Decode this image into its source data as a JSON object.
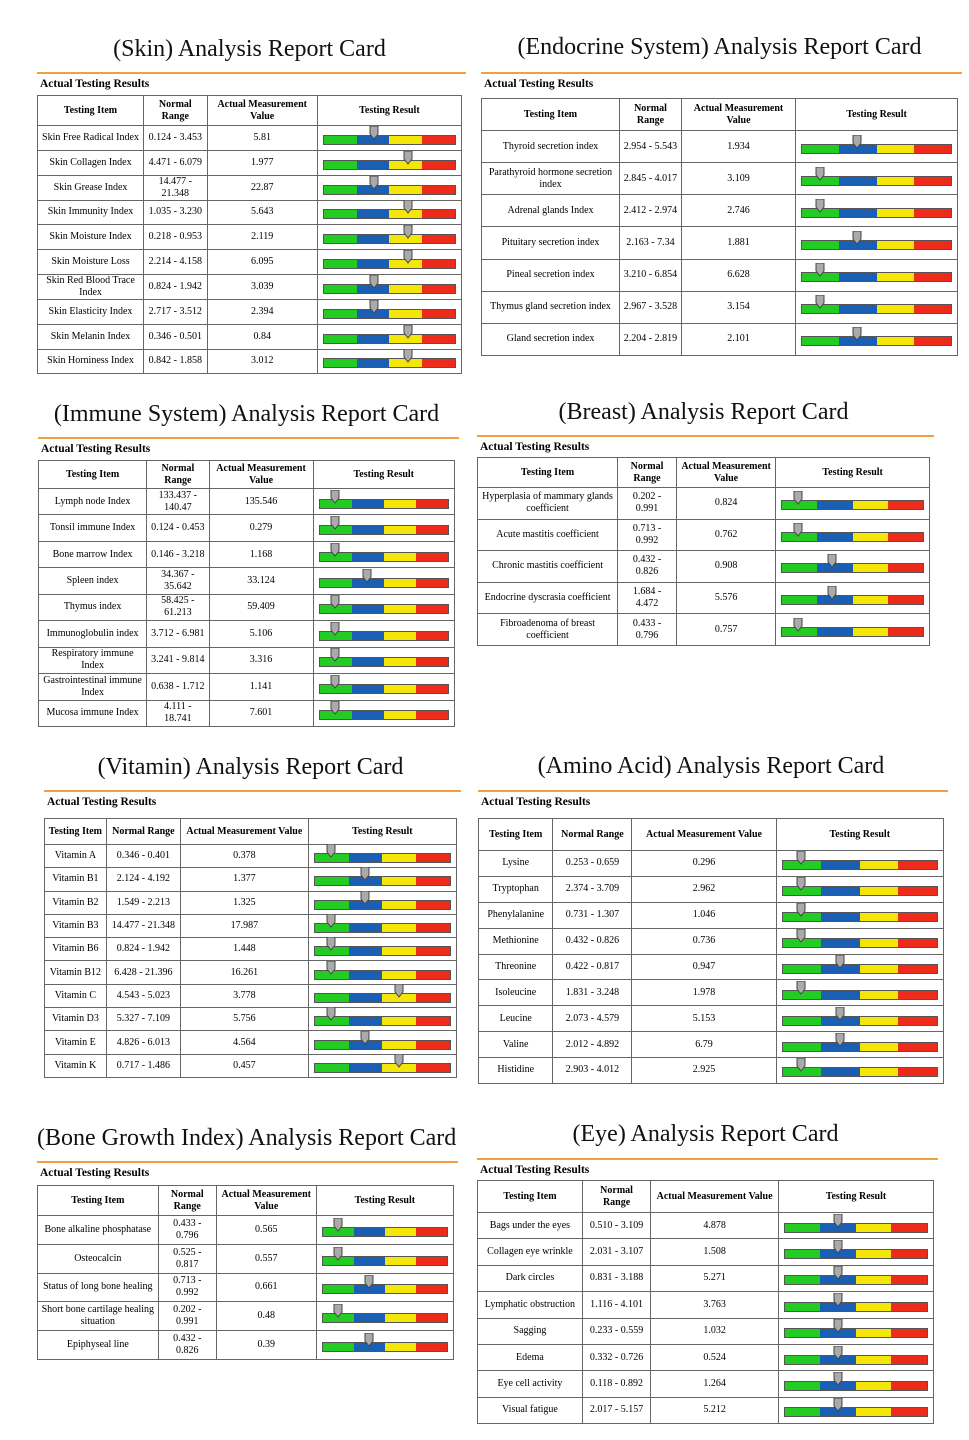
{
  "headers": [
    "Testing Item",
    "Normal Range",
    "Actual Measurement Value",
    "Testing Result"
  ],
  "cards": [
    {
      "title": "(Skin) Analysis Report Card",
      "subtitle": "Actual Testing Results",
      "rows": [
        {
          "item": "Skin Free Radical Index",
          "range": "0.124 - 3.453",
          "value": "5.81",
          "marker": 38
        },
        {
          "item": "Skin Collagen Index",
          "range": "4.471 - 6.079",
          "value": "1.977",
          "marker": 64
        },
        {
          "item": "Skin Grease Index",
          "range": "14.477 - 21.348",
          "value": "22.87",
          "marker": 38
        },
        {
          "item": "Skin Immunity Index",
          "range": "1.035 - 3.230",
          "value": "5.643",
          "marker": 64
        },
        {
          "item": "Skin Moisture Index",
          "range": "0.218 - 0.953",
          "value": "2.119",
          "marker": 64
        },
        {
          "item": "Skin Moisture Loss",
          "range": "2.214 - 4.158",
          "value": "6.095",
          "marker": 64
        },
        {
          "item": "Skin Red Blood Trace Index",
          "range": "0.824 - 1.942",
          "value": "3.039",
          "marker": 38
        },
        {
          "item": "Skin Elasticity Index",
          "range": "2.717 - 3.512",
          "value": "2.394",
          "marker": 38
        },
        {
          "item": "Skin Melanin Index",
          "range": "0.346 - 0.501",
          "value": "0.84",
          "marker": 64
        },
        {
          "item": "Skin Horniness Index",
          "range": "0.842 - 1.858",
          "value": "3.012",
          "marker": 64
        }
      ]
    },
    {
      "title": "(Endocrine System) Analysis Report Card",
      "subtitle": "Actual Testing Results",
      "rows": [
        {
          "item": "Thyroid secretion index",
          "range": "2.954 - 5.543",
          "value": "1.934",
          "marker": 37
        },
        {
          "item": "Parathyroid hormone secretion index",
          "range": "2.845 - 4.017",
          "value": "3.109",
          "marker": 12
        },
        {
          "item": "Adrenal glands Index",
          "range": "2.412 - 2.974",
          "value": "2.746",
          "marker": 12
        },
        {
          "item": "Pituitary secretion index",
          "range": "2.163 - 7.34",
          "value": "1.881",
          "marker": 37
        },
        {
          "item": "Pineal secretion index",
          "range": "3.210 - 6.854",
          "value": "6.628",
          "marker": 12
        },
        {
          "item": "Thymus gland secretion index",
          "range": "2.967 - 3.528",
          "value": "3.154",
          "marker": 12
        },
        {
          "item": "Gland secretion index",
          "range": "2.204 - 2.819",
          "value": "2.101",
          "marker": 37
        }
      ]
    },
    {
      "title": "(Immune System) Analysis Report Card",
      "subtitle": "Actual Testing Results",
      "rows": [
        {
          "item": "Lymph node Index",
          "range": "133.437 - 140.47",
          "value": "135.546",
          "marker": 12
        },
        {
          "item": "Tonsil immune Index",
          "range": "0.124 - 0.453",
          "value": "0.279",
          "marker": 12
        },
        {
          "item": "Bone marrow Index",
          "range": "0.146 - 3.218",
          "value": "1.168",
          "marker": 12
        },
        {
          "item": "Spleen index",
          "range": "34.367 - 35.642",
          "value": "33.124",
          "marker": 37
        },
        {
          "item": "Thymus index",
          "range": "58.425 - 61.213",
          "value": "59.409",
          "marker": 12
        },
        {
          "item": "Immunoglobulin index",
          "range": "3.712 - 6.981",
          "value": "5.106",
          "marker": 12
        },
        {
          "item": "Respiratory immune Index",
          "range": "3.241 - 9.814",
          "value": "3.316",
          "marker": 12
        },
        {
          "item": "Gastrointestinal immune Index",
          "range": "0.638 - 1.712",
          "value": "1.141",
          "marker": 12
        },
        {
          "item": "Mucosa immune Index",
          "range": "4.111 - 18.741",
          "value": "7.601",
          "marker": 12
        }
      ]
    },
    {
      "title": "(Breast) Analysis Report Card",
      "subtitle": "Actual Testing Results",
      "rows": [
        {
          "item": "Hyperplasia of mammary glands coefficient",
          "range": "0.202 - 0.991",
          "value": "0.824",
          "marker": 11
        },
        {
          "item": "Acute mastitis coefficient",
          "range": "0.713 - 0.992",
          "value": "0.762",
          "marker": 11
        },
        {
          "item": "Chronic mastitis coefficient",
          "range": "0.432 - 0.826",
          "value": "0.908",
          "marker": 35
        },
        {
          "item": "Endocrine dyscrasia coefficient",
          "range": "1.684 - 4.472",
          "value": "5.576",
          "marker": 35
        },
        {
          "item": "Fibroadenoma of breast coefficient",
          "range": "0.433 - 0.796",
          "value": "0.757",
          "marker": 11
        }
      ]
    },
    {
      "title": "(Vitamin) Analysis Report Card",
      "subtitle": "Actual Testing Results",
      "rows": [
        {
          "item": "Vitamin A",
          "range": "0.346 - 0.401",
          "value": "0.378",
          "marker": 12
        },
        {
          "item": "Vitamin B1",
          "range": "2.124 - 4.192",
          "value": "1.377",
          "marker": 37
        },
        {
          "item": "Vitamin B2",
          "range": "1.549 - 2.213",
          "value": "1.325",
          "marker": 37
        },
        {
          "item": "Vitamin B3",
          "range": "14.477 - 21.348",
          "value": "17.987",
          "marker": 12
        },
        {
          "item": "Vitamin B6",
          "range": "0.824 - 1.942",
          "value": "1.448",
          "marker": 12
        },
        {
          "item": "Vitamin B12",
          "range": "6.428 - 21.396",
          "value": "16.261",
          "marker": 12
        },
        {
          "item": "Vitamin C",
          "range": "4.543 - 5.023",
          "value": "3.778",
          "marker": 62
        },
        {
          "item": "Vitamin D3",
          "range": "5.327 - 7.109",
          "value": "5.756",
          "marker": 12
        },
        {
          "item": "Vitamin E",
          "range": "4.826 - 6.013",
          "value": "4.564",
          "marker": 37
        },
        {
          "item": "Vitamin K",
          "range": "0.717 - 1.486",
          "value": "0.457",
          "marker": 62
        }
      ]
    },
    {
      "title": "(Amino Acid) Analysis Report Card",
      "subtitle": "Actual Testing Results",
      "rows": [
        {
          "item": "Lysine",
          "range": "0.253 - 0.659",
          "value": "0.296",
          "marker": 12
        },
        {
          "item": "Tryptophan",
          "range": "2.374 - 3.709",
          "value": "2.962",
          "marker": 12
        },
        {
          "item": "Phenylalanine",
          "range": "0.731 - 1.307",
          "value": "1.046",
          "marker": 12
        },
        {
          "item": "Methionine",
          "range": "0.432 - 0.826",
          "value": "0.736",
          "marker": 12
        },
        {
          "item": "Threonine",
          "range": "0.422 - 0.817",
          "value": "0.947",
          "marker": 37
        },
        {
          "item": "Isoleucine",
          "range": "1.831 - 3.248",
          "value": "1.978",
          "marker": 12
        },
        {
          "item": "Leucine",
          "range": "2.073 - 4.579",
          "value": "5.153",
          "marker": 37
        },
        {
          "item": "Valine",
          "range": "2.012 - 4.892",
          "value": "6.79",
          "marker": 37
        },
        {
          "item": "Histidine",
          "range": "2.903 - 4.012",
          "value": "2.925",
          "marker": 12
        }
      ]
    },
    {
      "title": "(Bone Growth Index) Analysis Report Card",
      "subtitle": "Actual Testing Results",
      "rows": [
        {
          "item": "Bone alkaline phosphatase",
          "range": "0.433 - 0.796",
          "value": "0.565",
          "marker": 12
        },
        {
          "item": "Osteocalcin",
          "range": "0.525 - 0.817",
          "value": "0.557",
          "marker": 12
        },
        {
          "item": "Status of long bone healing",
          "range": "0.713 - 0.992",
          "value": "0.661",
          "marker": 37
        },
        {
          "item": "Short bone cartilage healing situation",
          "range": "0.202 - 0.991",
          "value": "0.48",
          "marker": 12
        },
        {
          "item": "Epiphyseal line",
          "range": "0.432 - 0.826",
          "value": "0.39",
          "marker": 37
        }
      ]
    },
    {
      "title": "(Eye) Analysis Report Card",
      "subtitle": "Actual Testing Results",
      "rows": [
        {
          "item": "Bags under the eyes",
          "range": "0.510 - 3.109",
          "value": "4.878",
          "marker": 37
        },
        {
          "item": "Collagen eye wrinkle",
          "range": "2.031 - 3.107",
          "value": "1.508",
          "marker": 37
        },
        {
          "item": "Dark circles",
          "range": "0.831 - 3.188",
          "value": "5.271",
          "marker": 37
        },
        {
          "item": "Lymphatic obstruction",
          "range": "1.116 - 4.101",
          "value": "3.763",
          "marker": 37
        },
        {
          "item": "Sagging",
          "range": "0.233 - 0.559",
          "value": "1.032",
          "marker": 37
        },
        {
          "item": "Edema",
          "range": "0.332 - 0.726",
          "value": "0.524",
          "marker": 37
        },
        {
          "item": "Eye cell activity",
          "range": "0.118 - 0.892",
          "value": "1.264",
          "marker": 37
        },
        {
          "item": "Visual fatigue",
          "range": "2.017 - 5.157",
          "value": "5.212",
          "marker": 37
        }
      ]
    }
  ]
}
